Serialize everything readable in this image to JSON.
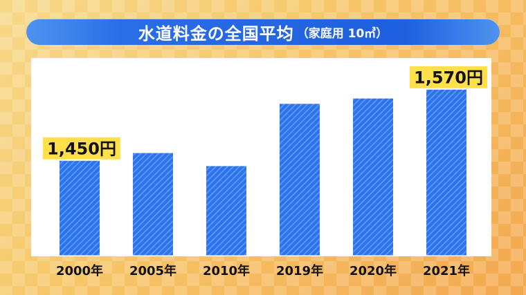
{
  "title": {
    "main": "水道料金の全国平均",
    "sub": "（家庭用 10㎥）"
  },
  "colors": {
    "bar": "#2a72ee",
    "bar_stripe": "#5b95f3",
    "callout_bg": "#ffe04a",
    "title_bar": "#1f5fe0"
  },
  "chart_data": {
    "type": "bar",
    "title": "水道料金の全国平均（家庭用 10㎥）",
    "xlabel": "",
    "ylabel": "",
    "categories": [
      "2000年",
      "2005年",
      "2010年",
      "2019年",
      "2020年",
      "2021年"
    ],
    "values": [
      1450,
      1463,
      1441,
      1546,
      1555,
      1570
    ],
    "ylim": [
      1290,
      1600
    ],
    "grid": false,
    "annotations": [
      {
        "category_index": 0,
        "text": "1,450円"
      },
      {
        "category_index": 5,
        "text": "1,570円"
      }
    ]
  }
}
